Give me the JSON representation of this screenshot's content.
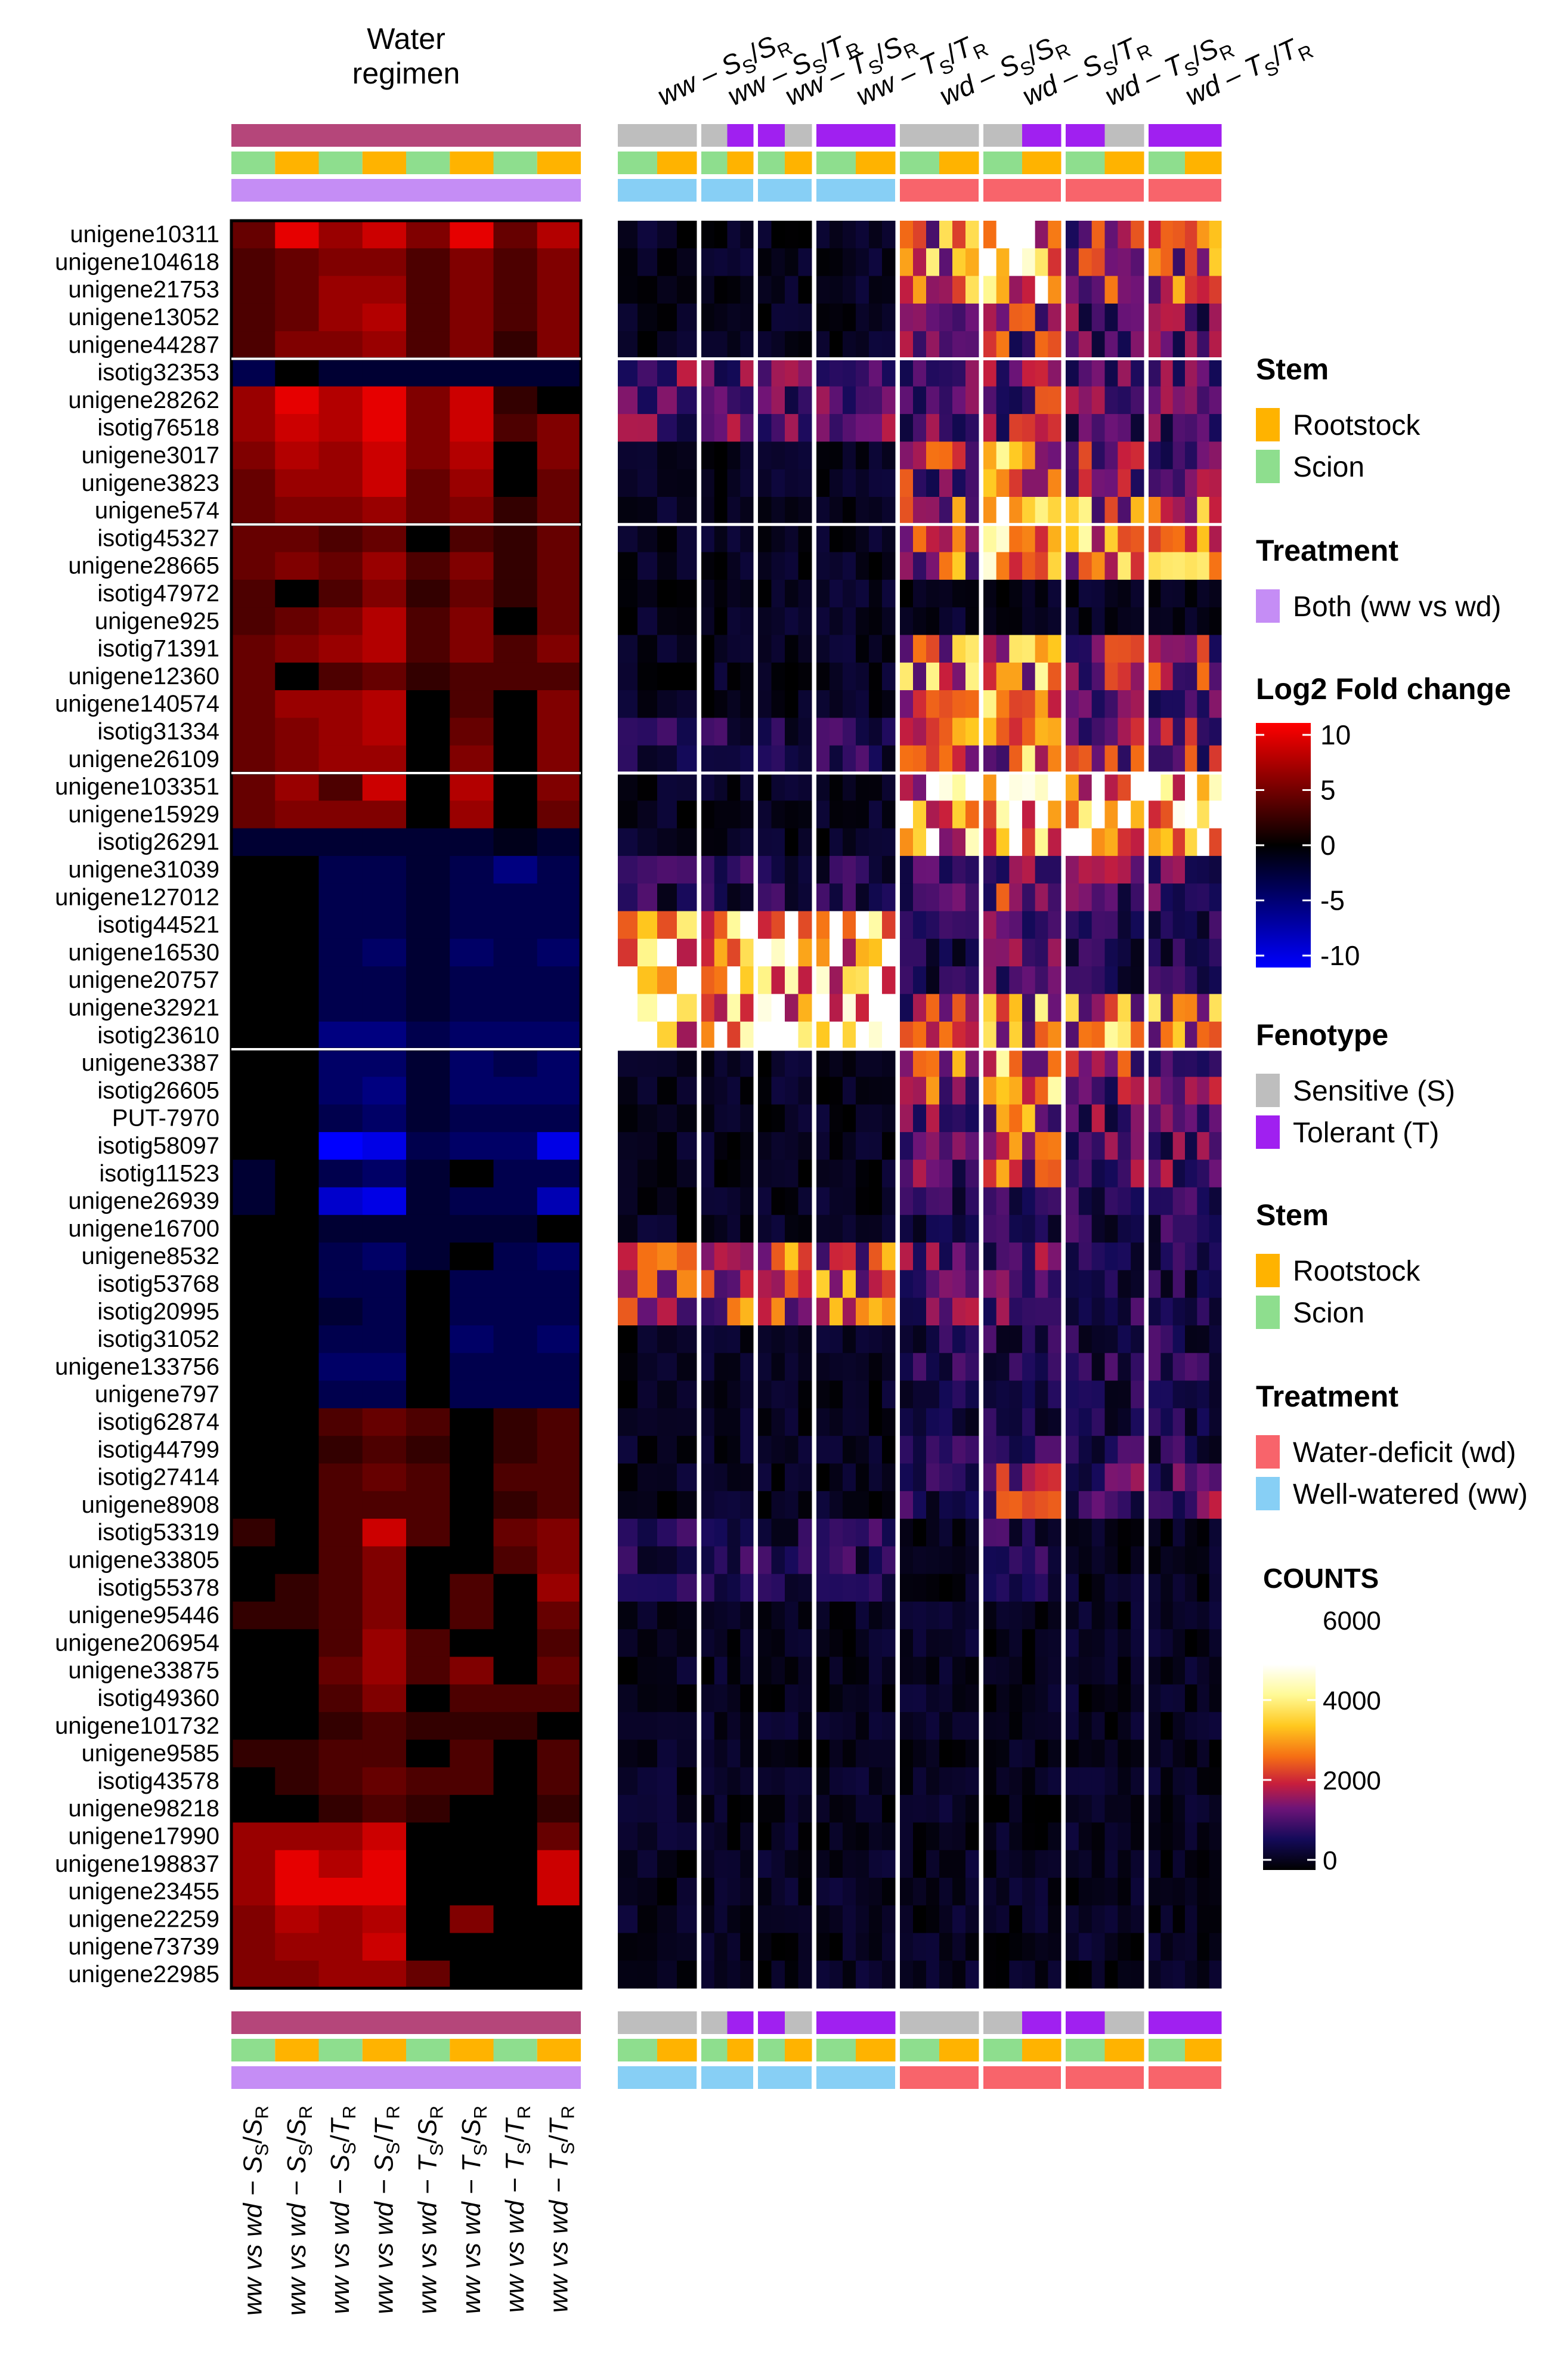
{
  "chart_data": [
    {
      "type": "heatmap",
      "name": "log2-fold-change-heatmap",
      "title": "Water\nregimen",
      "value_legend": {
        "title": "Log2 Fold change",
        "range": [
          -10,
          10
        ],
        "ticks": [
          "10",
          "5",
          "0",
          "-5",
          "-10"
        ],
        "colors": [
          "#ff0000",
          "#000000",
          "#0000ff"
        ]
      },
      "columns": [
        {
          "prefix": "ww vs wd − ",
          "a": "S",
          "b": "S",
          "c": "R"
        },
        {
          "prefix": "ww vs wd − ",
          "a": "S",
          "b": "S",
          "c": "R"
        },
        {
          "prefix": "ww vs wd − ",
          "a": "S",
          "b": "T",
          "c": "R"
        },
        {
          "prefix": "ww vs wd − ",
          "a": "S",
          "b": "T",
          "c": "R"
        },
        {
          "prefix": "ww vs wd − ",
          "a": "T",
          "b": "S",
          "c": "R"
        },
        {
          "prefix": "ww vs wd − ",
          "a": "T",
          "b": "S",
          "c": "R"
        },
        {
          "prefix": "ww vs wd − ",
          "a": "T",
          "b": "T",
          "c": "R"
        },
        {
          "prefix": "ww vs wd − ",
          "a": "T",
          "b": "T",
          "c": "R"
        }
      ],
      "annotation_rows": {
        "phenotype": [
          "Sensitive",
          "Sensitive",
          "Sensitive",
          "Sensitive",
          "Sensitive",
          "Sensitive",
          "Sensitive",
          "Sensitive"
        ],
        "stem": [
          "Scion",
          "Rootstock",
          "Scion",
          "Rootstock",
          "Scion",
          "Rootstock",
          "Scion",
          "Rootstock"
        ],
        "treatment": [
          "Both",
          "Both",
          "Both",
          "Both",
          "Both",
          "Both",
          "Both",
          "Both"
        ]
      },
      "row_groups": [
        5,
        11,
        20,
        30
      ],
      "rows": [
        "unigene10311",
        "unigene104618",
        "unigene21753",
        "unigene13052",
        "unigene44287",
        "isotig32353",
        "unigene28262",
        "isotig76518",
        "unigene3017",
        "unigene3823",
        "unigene574",
        "isotig45327",
        "unigene28665",
        "isotig47972",
        "unigene925",
        "isotig71391",
        "unigene12360",
        "unigene140574",
        "isotig31334",
        "unigene26109",
        "unigene103351",
        "unigene15929",
        "isotig26291",
        "unigene31039",
        "unigene127012",
        "isotig44521",
        "unigene16530",
        "unigene20757",
        "unigene32921",
        "isotig23610",
        "unigene3387",
        "isotig26605",
        "PUT-7970",
        "isotig58097",
        "isotig11523",
        "unigene26939",
        "unigene16700",
        "unigene8532",
        "isotig53768",
        "isotig20995",
        "isotig31052",
        "unigene133756",
        "unigene797",
        "isotig62874",
        "isotig44799",
        "isotig27414",
        "unigene8908",
        "isotig53319",
        "unigene33805",
        "isotig55378",
        "unigene95446",
        "unigene206954",
        "unigene33875",
        "isotig49360",
        "unigene101732",
        "unigene9585",
        "isotig43578",
        "unigene98218",
        "unigene17990",
        "unigene198837",
        "unigene23455",
        "unigene22259",
        "unigene73739",
        "unigene22985"
      ],
      "values": [
        [
          4,
          9,
          6,
          8,
          5,
          9,
          4,
          7
        ],
        [
          3,
          4,
          5,
          5,
          3,
          5,
          3,
          5
        ],
        [
          3,
          4,
          6,
          6,
          3,
          5,
          3,
          5
        ],
        [
          3,
          4,
          6,
          7,
          3,
          5,
          3,
          5
        ],
        [
          3,
          5,
          5,
          6,
          3,
          5,
          2,
          5
        ],
        [
          -3,
          0,
          -2,
          -2,
          -2,
          -2,
          -2,
          -2
        ],
        [
          6,
          9,
          7,
          9,
          5,
          8,
          2,
          0
        ],
        [
          6,
          8,
          7,
          9,
          5,
          8,
          3,
          5
        ],
        [
          5,
          7,
          6,
          8,
          5,
          7,
          0,
          5
        ],
        [
          4,
          6,
          6,
          8,
          4,
          6,
          0,
          4
        ],
        [
          4,
          5,
          5,
          6,
          4,
          5,
          2,
          4
        ],
        [
          4,
          4,
          3,
          4,
          0,
          3,
          2,
          4
        ],
        [
          4,
          5,
          4,
          6,
          3,
          5,
          2,
          4
        ],
        [
          3,
          0,
          3,
          5,
          2,
          4,
          2,
          4
        ],
        [
          3,
          4,
          5,
          7,
          3,
          5,
          0,
          4
        ],
        [
          4,
          5,
          6,
          7,
          3,
          5,
          3,
          5
        ],
        [
          4,
          0,
          3,
          4,
          2,
          3,
          3,
          3
        ],
        [
          4,
          6,
          6,
          7,
          0,
          3,
          0,
          5
        ],
        [
          4,
          5,
          6,
          7,
          0,
          4,
          0,
          5
        ],
        [
          4,
          5,
          6,
          6,
          0,
          5,
          0,
          5
        ],
        [
          4,
          6,
          3,
          8,
          0,
          7,
          0,
          5
        ],
        [
          4,
          5,
          5,
          5,
          0,
          6,
          0,
          4
        ],
        [
          -2,
          -2,
          -2,
          -2,
          -2,
          -2,
          -1,
          -2
        ],
        [
          0,
          0,
          -3,
          -3,
          -2,
          -3,
          -5,
          -3
        ],
        [
          0,
          0,
          -3,
          -3,
          -2,
          -3,
          -3,
          -3
        ],
        [
          0,
          0,
          -3,
          -3,
          -2,
          -3,
          -3,
          -3
        ],
        [
          0,
          0,
          -3,
          -4,
          -2,
          -4,
          -3,
          -4
        ],
        [
          0,
          0,
          -3,
          -3,
          -2,
          -3,
          -3,
          -3
        ],
        [
          0,
          0,
          -3,
          -3,
          -2,
          -3,
          -3,
          -3
        ],
        [
          0,
          0,
          -5,
          -5,
          -3,
          -4,
          -4,
          -4
        ],
        [
          0,
          0,
          -4,
          -4,
          -2,
          -4,
          -3,
          -4
        ],
        [
          0,
          0,
          -4,
          -5,
          -2,
          -4,
          -4,
          -4
        ],
        [
          0,
          0,
          -3,
          -4,
          -2,
          -3,
          -3,
          -3
        ],
        [
          0,
          0,
          -10,
          -9,
          -3,
          -4,
          -4,
          -9
        ],
        [
          -2,
          0,
          -3,
          -4,
          -2,
          0,
          -3,
          -3
        ],
        [
          -2,
          0,
          -8,
          -9,
          -2,
          -3,
          -3,
          -7
        ],
        [
          0,
          0,
          -2,
          -2,
          -2,
          -2,
          -2,
          0
        ],
        [
          0,
          0,
          -3,
          -4,
          -2,
          0,
          -3,
          -4
        ],
        [
          0,
          0,
          -3,
          -3,
          0,
          -3,
          -3,
          -3
        ],
        [
          0,
          0,
          -2,
          -3,
          0,
          -3,
          -3,
          -3
        ],
        [
          0,
          0,
          -3,
          -3,
          0,
          -4,
          -3,
          -4
        ],
        [
          0,
          0,
          -4,
          -4,
          0,
          -3,
          -3,
          -3
        ],
        [
          0,
          0,
          -3,
          -3,
          0,
          -3,
          -3,
          -3
        ],
        [
          0,
          0,
          3,
          4,
          3,
          0,
          2,
          3
        ],
        [
          0,
          0,
          2,
          3,
          2,
          0,
          2,
          3
        ],
        [
          0,
          0,
          3,
          4,
          3,
          0,
          3,
          3
        ],
        [
          0,
          0,
          3,
          3,
          3,
          0,
          2,
          3
        ],
        [
          2,
          0,
          3,
          8,
          3,
          0,
          4,
          5
        ],
        [
          0,
          0,
          3,
          5,
          0,
          0,
          3,
          5
        ],
        [
          0,
          2,
          3,
          5,
          0,
          3,
          0,
          6
        ],
        [
          2,
          2,
          3,
          5,
          0,
          3,
          0,
          4
        ],
        [
          0,
          0,
          3,
          6,
          3,
          0,
          0,
          3
        ],
        [
          0,
          0,
          4,
          6,
          3,
          5,
          0,
          4
        ],
        [
          0,
          0,
          3,
          5,
          0,
          3,
          3,
          3
        ],
        [
          0,
          0,
          2,
          3,
          2,
          2,
          2,
          0
        ],
        [
          2,
          2,
          3,
          3,
          0,
          3,
          0,
          3
        ],
        [
          0,
          2,
          3,
          4,
          3,
          3,
          0,
          3
        ],
        [
          0,
          0,
          2,
          3,
          2,
          0,
          0,
          2
        ],
        [
          6,
          6,
          6,
          8,
          0,
          0,
          0,
          4
        ],
        [
          6,
          9,
          7,
          9,
          0,
          0,
          0,
          8
        ],
        [
          6,
          9,
          9,
          9,
          0,
          0,
          0,
          8
        ],
        [
          5,
          7,
          6,
          7,
          0,
          5,
          0,
          0
        ],
        [
          5,
          6,
          6,
          8,
          0,
          0,
          0,
          0
        ],
        [
          5,
          5,
          6,
          6,
          4,
          0,
          0,
          0
        ]
      ]
    },
    {
      "type": "heatmap",
      "name": "counts-heatmap",
      "value_legend": {
        "title": "COUNTS",
        "range": [
          0,
          6000
        ],
        "ticks": [
          "6000",
          "4000",
          "2000",
          "0"
        ]
      },
      "groups": [
        {
          "pre": "ww – ",
          "a": "S",
          "b": "S",
          "c": "R",
          "phenotype": [
            "S",
            "S",
            "S",
            "S"
          ],
          "stem": [
            "Scion",
            "Scion",
            "Rootstock",
            "Rootstock"
          ],
          "treatment": "ww",
          "row_levels": [
            1,
            1,
            3,
            1,
            1,
            1,
            1,
            2,
            1,
            2,
            8,
            9,
            1,
            1,
            1,
            5,
            1,
            1,
            1,
            2,
            1,
            1,
            1,
            1,
            1,
            1
          ]
        },
        {
          "pre": "ww – ",
          "a": "S",
          "b": "T",
          "c": "R",
          "phenotype": [
            "S",
            "S",
            "T",
            "T"
          ],
          "stem": [
            "Scion",
            "Scion",
            "Rootstock",
            "Rootstock"
          ],
          "treatment": "ww",
          "row_levels": [
            1,
            1,
            3,
            1,
            1,
            1,
            1,
            2,
            1,
            2,
            8,
            9,
            1,
            1,
            1,
            5,
            1,
            1,
            1,
            2,
            1,
            1,
            1,
            1,
            1,
            1
          ]
        },
        {
          "pre": "ww – ",
          "a": "T",
          "b": "S",
          "c": "R",
          "phenotype": [
            "T",
            "T",
            "S",
            "S"
          ],
          "stem": [
            "Scion",
            "Scion",
            "Rootstock",
            "Rootstock"
          ],
          "treatment": "ww",
          "row_levels": [
            1,
            1,
            3,
            1,
            1,
            1,
            1,
            2,
            1,
            2,
            8,
            9,
            1,
            1,
            1,
            5,
            1,
            1,
            1,
            2,
            1,
            1,
            1,
            1,
            1,
            1
          ]
        },
        {
          "pre": "ww – ",
          "a": "T",
          "b": "T",
          "c": "R",
          "phenotype": [
            "T",
            "T",
            "T",
            "T",
            "T",
            "T"
          ],
          "stem": [
            "Scion",
            "Scion",
            "Scion",
            "Rootstock",
            "Rootstock",
            "Rootstock"
          ],
          "treatment": "ww",
          "row_levels": [
            1,
            1,
            3,
            1,
            1,
            1,
            1,
            2,
            1,
            2,
            8,
            9,
            1,
            1,
            1,
            5,
            1,
            1,
            1,
            2,
            1,
            1,
            1,
            1,
            1,
            1
          ]
        },
        {
          "pre": "wd – ",
          "a": "S",
          "b": "S",
          "c": "R",
          "phenotype": [
            "S",
            "S",
            "S",
            "S",
            "S",
            "S"
          ],
          "stem": [
            "Scion",
            "Scion",
            "Scion",
            "Rootstock",
            "Rootstock",
            "Rootstock"
          ],
          "treatment": "wd",
          "row_levels": [
            6,
            3,
            3,
            4,
            5,
            1,
            6,
            5,
            8,
            3,
            2,
            4,
            5,
            3,
            2,
            3,
            2,
            2,
            2,
            1,
            1,
            1,
            1,
            1,
            1,
            1
          ]
        },
        {
          "pre": "wd – ",
          "a": "S",
          "b": "T",
          "c": "R",
          "phenotype": [
            "S",
            "S",
            "S",
            "T",
            "T",
            "T"
          ],
          "stem": [
            "Scion",
            "Scion",
            "Scion",
            "Rootstock",
            "Rootstock",
            "Rootstock"
          ],
          "treatment": "wd",
          "row_levels": [
            8,
            4,
            4,
            6,
            7,
            1,
            6,
            6,
            9,
            4,
            3,
            6,
            6,
            5,
            2,
            3,
            2,
            2,
            4,
            2,
            1,
            1,
            1,
            1,
            1,
            1
          ]
        },
        {
          "pre": "wd – ",
          "a": "T",
          "b": "S",
          "c": "R",
          "phenotype": [
            "T",
            "T",
            "T",
            "S",
            "S",
            "S"
          ],
          "stem": [
            "Scion",
            "Scion",
            "Scion",
            "Rootstock",
            "Rootstock",
            "Rootstock"
          ],
          "treatment": "wd",
          "row_levels": [
            4,
            3,
            3,
            4,
            6,
            1,
            4,
            4,
            8,
            3,
            2,
            6,
            4,
            3,
            2,
            2,
            2,
            2,
            3,
            1,
            1,
            1,
            1,
            1,
            1,
            1
          ]
        },
        {
          "pre": "wd – ",
          "a": "T",
          "b": "T",
          "c": "R",
          "phenotype": [
            "T",
            "T",
            "T",
            "T",
            "T",
            "T"
          ],
          "stem": [
            "Scion",
            "Scion",
            "Scion",
            "Rootstock",
            "Rootstock",
            "Rootstock"
          ],
          "treatment": "wd",
          "row_levels": [
            5,
            3,
            3,
            3,
            6,
            1,
            4,
            4,
            8,
            3,
            2,
            6,
            4,
            3,
            2,
            2,
            2,
            2,
            3,
            1,
            1,
            1,
            1,
            1,
            1,
            1
          ]
        }
      ]
    }
  ],
  "legends": {
    "stem1": {
      "title": "Stem",
      "items": [
        "Rootstock",
        "Scion"
      ]
    },
    "treatment1": {
      "title": "Treatment",
      "items": [
        "Both (ww vs wd)"
      ]
    },
    "fenotype": {
      "title": "Fenotype",
      "items": [
        "Sensitive (S)",
        "Tolerant (T)"
      ]
    },
    "stem2": {
      "title": "Stem",
      "items": [
        "Rootstock",
        "Scion"
      ]
    },
    "treatment2": {
      "title": "Treatment",
      "items": [
        "Water-deficit (wd)",
        "Well-watered (ww)"
      ]
    }
  },
  "colors": {
    "phenotype_bar": "#b5467a",
    "sensitive": "#bebebe",
    "tolerant": "#a020f0",
    "rootstock": "#ffb300",
    "scion": "#8ede8e",
    "both": "#c58df5",
    "water_deficit": "#f8646b",
    "well_watered": "#87cff5"
  }
}
